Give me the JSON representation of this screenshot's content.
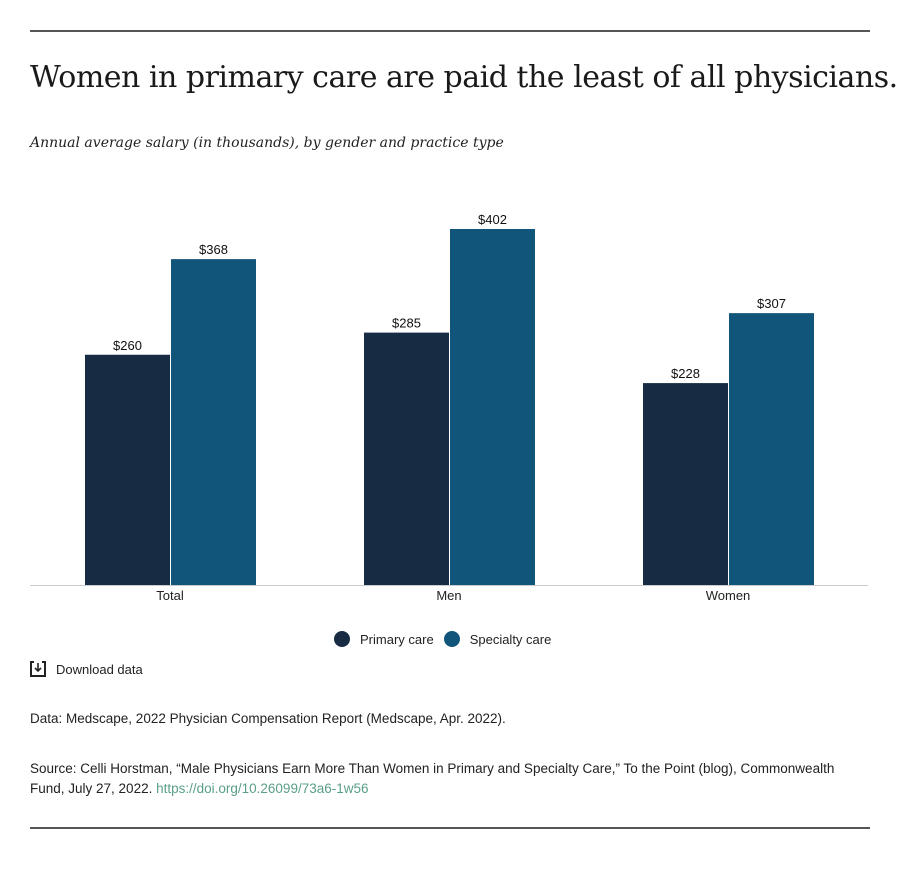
{
  "title": "Women in primary care are paid the least of all physicians.",
  "subtitle": "Annual average salary (in thousands), by gender and practice type",
  "colors": {
    "primary": "#172b42",
    "specialty": "#12557a",
    "link": "#5a9f87"
  },
  "chart_data": {
    "type": "bar",
    "categories": [
      "Total",
      "Men",
      "Women"
    ],
    "series": [
      {
        "name": "Primary care",
        "values": [
          260,
          285,
          228
        ],
        "labels": [
          "$260",
          "$285",
          "$228"
        ]
      },
      {
        "name": "Specialty care",
        "values": [
          368,
          402,
          307
        ],
        "labels": [
          "$368",
          "$402",
          "$307"
        ]
      }
    ],
    "ylim": [
      0,
      402
    ],
    "grid": false,
    "legend": "bottom-center"
  },
  "download_label": "Download data",
  "data_note": "Data: Medscape, 2022 Physician Compensation Report (Medscape, Apr. 2022).",
  "source_note": "Source: Celli Horstman, “Male Physicians Earn More Than Women in Primary and Specialty Care,” To the Point (blog), Commonwealth Fund, July 27, 2022. ",
  "source_link": "https://doi.org/10.26099/73a6-1w56"
}
